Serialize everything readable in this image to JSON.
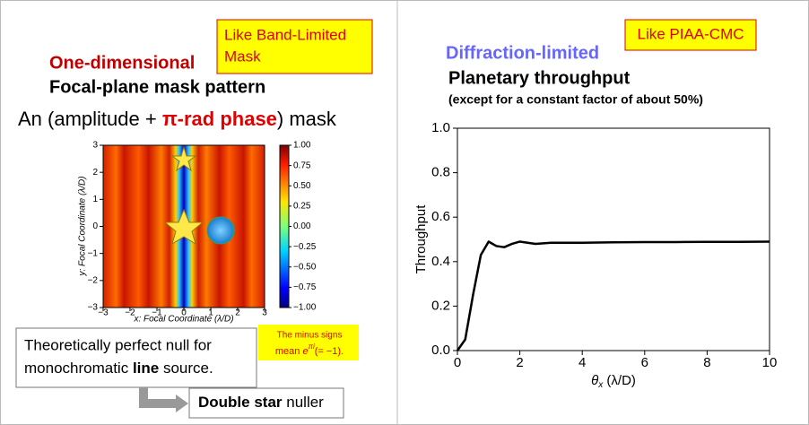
{
  "left": {
    "callout": [
      "Like Band-Limited",
      "Mask"
    ],
    "heading": "One-dimensional",
    "subheading": "Focal-plane mask pattern",
    "mask_caption": [
      "An (amplitude + ",
      "π-rad phase",
      ") mask"
    ],
    "note": [
      "The minus signs",
      "mean ",
      "e",
      "πi",
      "(= −1)."
    ],
    "statement": [
      "Theoretically perfect null for",
      "monochromatic ",
      "line",
      " source."
    ],
    "result": [
      "Double star",
      " nuller"
    ]
  },
  "mask_plot": {
    "xlabel": "x: Focal Coordinate (λ/D)",
    "ylabel": "y: Focal Coordinate (λ/D)",
    "xlim": [
      -3,
      3
    ],
    "ylim": [
      -3,
      3
    ],
    "xticks": [
      {
        "value": -3,
        "label": "−3"
      },
      {
        "value": -2,
        "label": "−2"
      },
      {
        "value": -1,
        "label": "−1"
      },
      0,
      1,
      2,
      3
    ],
    "yticks": [
      {
        "value": -3,
        "label": "−3"
      },
      {
        "value": -2,
        "label": "−2"
      },
      {
        "value": -1,
        "label": "−1"
      },
      0,
      1,
      2,
      3
    ],
    "clim": [
      -1,
      1
    ],
    "cticks": [
      {
        "value": -1,
        "label": "−1.00"
      },
      {
        "value": -0.75,
        "label": "−0.75"
      },
      {
        "value": -0.5,
        "label": "−0.50"
      },
      {
        "value": -0.25,
        "label": "−0.25"
      },
      {
        "value": 0,
        "label": "0.00"
      },
      {
        "value": 0.25,
        "label": "0.25"
      },
      {
        "value": 0.5,
        "label": "0.50"
      },
      {
        "value": 0.75,
        "label": "0.75"
      },
      {
        "value": 1,
        "label": "1.00"
      }
    ]
  },
  "right": {
    "callout": "Like PIAA-CMC",
    "heading": "Diffraction-limited",
    "subheading": "Planetary throughput",
    "note": "(except for a constant factor of about 50%)"
  },
  "chart_data": {
    "type": "line",
    "ylabel": "Throughput",
    "xlabel": [
      "θ",
      "x",
      " (λ/D)"
    ],
    "x": [
      0,
      0.25,
      0.5,
      0.75,
      1.0,
      1.25,
      1.5,
      1.75,
      2.0,
      2.5,
      3,
      4,
      5,
      6,
      7,
      8,
      9,
      10
    ],
    "values": [
      0,
      0.05,
      0.25,
      0.43,
      0.49,
      0.47,
      0.465,
      0.48,
      0.49,
      0.48,
      0.485,
      0.485,
      0.487,
      0.488,
      0.488,
      0.489,
      0.489,
      0.49
    ],
    "color": "#000000",
    "xlim": [
      0,
      10
    ],
    "ylim": [
      0,
      1
    ],
    "xticks": [
      0,
      2,
      4,
      6,
      8,
      10
    ],
    "yticks": [
      {
        "value": 0,
        "label": "0.0"
      },
      {
        "value": 0.2,
        "label": "0.2"
      },
      {
        "value": 0.4,
        "label": "0.4"
      },
      {
        "value": 0.6,
        "label": "0.6"
      },
      {
        "value": 0.8,
        "label": "0.8"
      },
      {
        "value": 1,
        "label": "1.0"
      }
    ]
  }
}
